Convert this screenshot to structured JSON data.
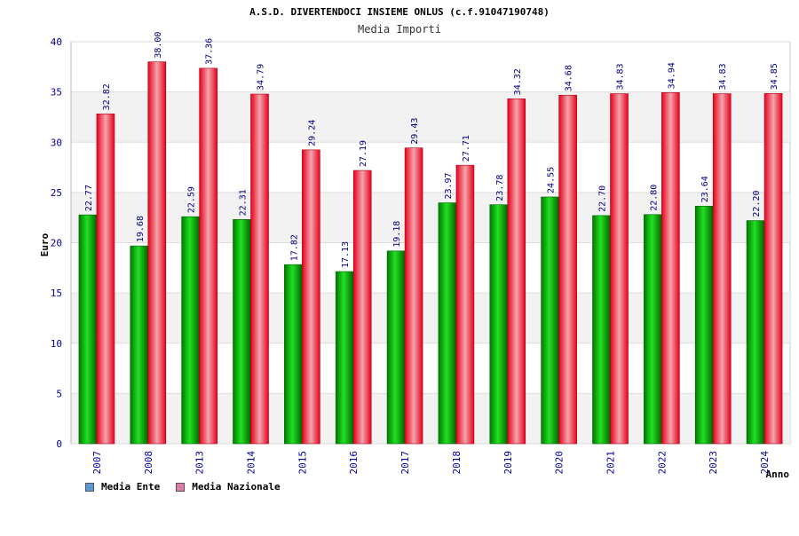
{
  "chart_data": {
    "type": "bar",
    "title": "A.S.D. DIVERTENDOCI INSIEME ONLUS (c.f.91047190748)",
    "subtitle": "Media Importi",
    "xlabel": "Anno",
    "ylabel": "Euro",
    "ylim": [
      0,
      40
    ],
    "yticks": [
      0,
      5,
      10,
      15,
      20,
      25,
      30,
      35,
      40
    ],
    "grid": true,
    "legend_position": "bottom-left",
    "categories": [
      "2007",
      "2008",
      "2013",
      "2014",
      "2015",
      "2016",
      "2017",
      "2018",
      "2019",
      "2020",
      "2021",
      "2022",
      "2023",
      "2024"
    ],
    "series": [
      {
        "name": "Media Ente",
        "color": "#00c000",
        "legend_color": "#5b9bd5",
        "values": [
          22.77,
          19.68,
          22.59,
          22.31,
          17.82,
          17.13,
          19.18,
          23.97,
          23.78,
          24.55,
          22.7,
          22.8,
          23.64,
          22.2
        ],
        "labels": [
          "22.77",
          "19.68",
          "22.59",
          "22.31",
          "17.82",
          "17.13",
          "19.18",
          "23.97",
          "23.78",
          "24.55",
          "22.70",
          "22.80",
          "23.64",
          "22.20"
        ]
      },
      {
        "name": "Media Nazionale",
        "color": "#e8001c",
        "legend_color": "#e07aa8",
        "values": [
          32.82,
          38.0,
          37.36,
          34.79,
          29.24,
          27.19,
          29.43,
          27.71,
          34.32,
          34.68,
          34.83,
          34.94,
          34.83,
          34.85
        ],
        "labels": [
          "32.82",
          "38.00",
          "37.36",
          "34.79",
          "29.24",
          "27.19",
          "29.43",
          "27.71",
          "34.32",
          "34.68",
          "34.83",
          "34.94",
          "34.83",
          "34.85"
        ]
      }
    ]
  }
}
